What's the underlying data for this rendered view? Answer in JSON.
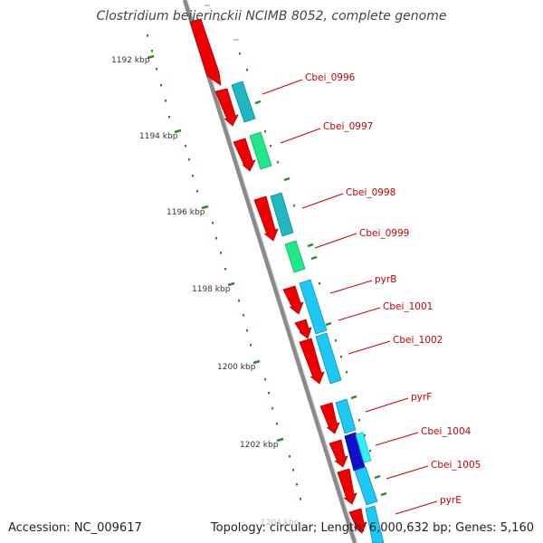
{
  "title": "Clostridium beijerinckii NCIMB 8052, complete genome",
  "accession_text": "Accession: NC_009617",
  "summary_text": "Topology: circular; Length: 6,000,632 bp; Genes: 5,160",
  "colors": {
    "cds": "#ee0000",
    "feature_teal": "#20b8c0",
    "feature_green": "#20e88a",
    "feature_blue": "#1ec8f5",
    "feature_navy": "#1010c8",
    "feature_cyan": "#30f0ff",
    "ruler": "#2a8a2a",
    "label": "#cc0000"
  },
  "ruler_labels": [
    "1192 kbp",
    "1194 kbp",
    "1196 kbp",
    "1198 kbp",
    "1200 kbp",
    "1202 kbp",
    "1204 kbp"
  ],
  "gene_labels": [
    "Cbei_0996",
    "Cbei_0997",
    "Cbei_0998",
    "Cbei_0999",
    "pyrB",
    "Cbei_1001",
    "Cbei_1002",
    "pyrF",
    "Cbei_1004",
    "Cbei_1005",
    "pyrE"
  ]
}
